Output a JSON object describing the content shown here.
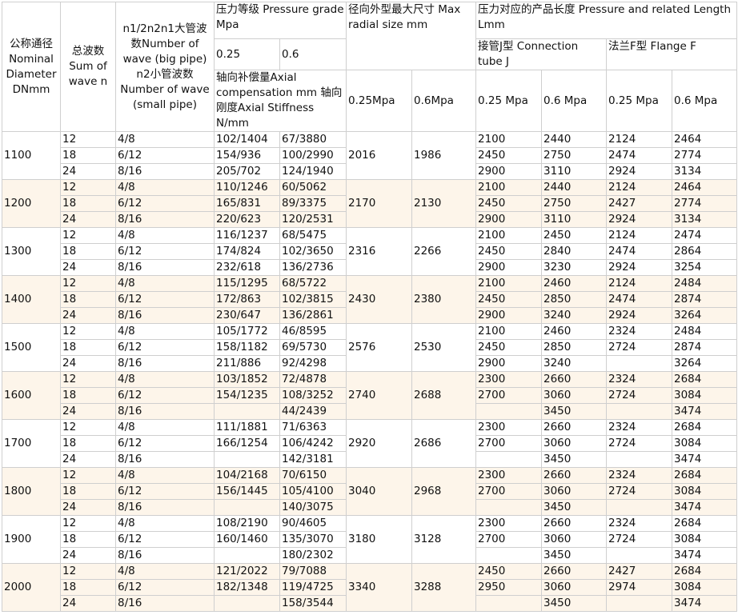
{
  "header": {
    "dn": "公称通径Nominal Diameter DNmm",
    "n": "总波数Sum of wave n",
    "waves": "n1/2n2n1大管波数Number of wave (big pipe) n2小管波数Number of wave (small pipe)",
    "pressure_title": "压力等级 Pressure grade Mpa",
    "p025": "0.25",
    "p06": "0.6",
    "axial": "轴向补偿量Axial compensation mm 轴向刚度Axial Stiffness N/mm",
    "radial": "径向外型最大尺寸 Max radial size mm",
    "radial_025": "0.25Mpa",
    "radial_06": "0.6Mpa",
    "length": "压力对应的产品长度 Pressure and related Length Lmm",
    "tube": "接管J型 Connection tube J",
    "flange": "法兰F型 Flange F",
    "tube_025": "0.25 Mpa",
    "tube_06": "0.6 Mpa",
    "flange_025": "0.25 Mpa",
    "flange_06": "0.6 Mpa"
  },
  "groups": [
    {
      "dn": "1100",
      "r025": "2016",
      "r06": "1986",
      "rows": [
        {
          "n": "12",
          "w": "4/8",
          "a025": "102/1404",
          "a06": "67/3880",
          "j025": "2100",
          "j06": "2440",
          "f025": "2124",
          "f06": "2464"
        },
        {
          "n": "18",
          "w": "6/12",
          "a025": "154/936",
          "a06": "100/2990",
          "j025": "2450",
          "j06": "2750",
          "f025": "2474",
          "f06": "2774"
        },
        {
          "n": "24",
          "w": "8/16",
          "a025": "205/702",
          "a06": "124/1940",
          "j025": "2900",
          "j06": "3110",
          "f025": "2924",
          "f06": "3134"
        }
      ]
    },
    {
      "dn": "1200",
      "r025": "2170",
      "r06": "2130",
      "rows": [
        {
          "n": "12",
          "w": "4/8",
          "a025": "110/1246",
          "a06": "60/5062",
          "j025": "2100",
          "j06": "2440",
          "f025": "2124",
          "f06": "2464"
        },
        {
          "n": "18",
          "w": "6/12",
          "a025": "165/831",
          "a06": "89/3375",
          "j025": "2450",
          "j06": "2750",
          "f025": "2427",
          "f06": "2774"
        },
        {
          "n": "24",
          "w": "8/16",
          "a025": "220/623",
          "a06": "120/2531",
          "j025": "2900",
          "j06": "3110",
          "f025": "2924",
          "f06": "3134"
        }
      ]
    },
    {
      "dn": "1300",
      "r025": "2316",
      "r06": "2266",
      "rows": [
        {
          "n": "12",
          "w": "4/8",
          "a025": "116/1237",
          "a06": "68/5475",
          "j025": "2100",
          "j06": "2450",
          "f025": "2124",
          "f06": "2474"
        },
        {
          "n": "18",
          "w": "6/12",
          "a025": "174/824",
          "a06": "102/3650",
          "j025": "2450",
          "j06": "2840",
          "f025": "2474",
          "f06": "2864"
        },
        {
          "n": "24",
          "w": "8/16",
          "a025": "232/618",
          "a06": "136/2736",
          "j025": "2900",
          "j06": "3230",
          "f025": "2924",
          "f06": "3254"
        }
      ]
    },
    {
      "dn": "1400",
      "r025": "2430",
      "r06": "2380",
      "rows": [
        {
          "n": "12",
          "w": "4/8",
          "a025": "115/1295",
          "a06": "68/5722",
          "j025": "2100",
          "j06": "2460",
          "f025": "2124",
          "f06": "2484"
        },
        {
          "n": "18",
          "w": "6/12",
          "a025": "172/863",
          "a06": "102/3815",
          "j025": "2450",
          "j06": "2850",
          "f025": "2474",
          "f06": "2874"
        },
        {
          "n": "24",
          "w": "8/16",
          "a025": "230/647",
          "a06": "136/2861",
          "j025": "2900",
          "j06": "3240",
          "f025": "2924",
          "f06": "3264"
        }
      ]
    },
    {
      "dn": "1500",
      "r025": "2576",
      "r06": "2530",
      "rows": [
        {
          "n": "12",
          "w": "4/8",
          "a025": "105/1772",
          "a06": "46/8595",
          "j025": "2100",
          "j06": "2460",
          "f025": "2324",
          "f06": "2484"
        },
        {
          "n": "18",
          "w": "6/12",
          "a025": "158/1182",
          "a06": "69/5730",
          "j025": "2450",
          "j06": "2850",
          "f025": "2724",
          "f06": "2874"
        },
        {
          "n": "24",
          "w": "8/16",
          "a025": "211/886",
          "a06": "92/4298",
          "j025": "2900",
          "j06": "3240",
          "f025": "",
          "f06": "3264"
        }
      ]
    },
    {
      "dn": "1600",
      "r025": "2740",
      "r06": "2688",
      "rows": [
        {
          "n": "12",
          "w": "4/8",
          "a025": "103/1852",
          "a06": "72/4878",
          "j025": "2300",
          "j06": "2660",
          "f025": "2324",
          "f06": "2684"
        },
        {
          "n": "18",
          "w": "6/12",
          "a025": "154/1235",
          "a06": "108/3252",
          "j025": "2700",
          "j06": "3060",
          "f025": "2724",
          "f06": "3084"
        },
        {
          "n": "24",
          "w": "8/16",
          "a025": "",
          "a06": "44/2439",
          "j025": "",
          "j06": "3450",
          "f025": "",
          "f06": "3474"
        }
      ]
    },
    {
      "dn": "1700",
      "r025": "2920",
      "r06": "2686",
      "rows": [
        {
          "n": "12",
          "w": "4/8",
          "a025": "111/1881",
          "a06": "71/6363",
          "j025": "2300",
          "j06": "2660",
          "f025": "2324",
          "f06": "2684"
        },
        {
          "n": "18",
          "w": "6/12",
          "a025": "166/1254",
          "a06": "106/4242",
          "j025": "2700",
          "j06": "3060",
          "f025": "2724",
          "f06": "3084"
        },
        {
          "n": "24",
          "w": "8/16",
          "a025": "",
          "a06": "142/3181",
          "j025": "",
          "j06": "3450",
          "f025": "",
          "f06": "3474"
        }
      ]
    },
    {
      "dn": "1800",
      "r025": "3040",
      "r06": "2968",
      "rows": [
        {
          "n": "12",
          "w": "4/8",
          "a025": "104/2168",
          "a06": "70/6150",
          "j025": "2300",
          "j06": "2660",
          "f025": "2324",
          "f06": "2684"
        },
        {
          "n": "18",
          "w": "6/12",
          "a025": "156/1445",
          "a06": "105/4100",
          "j025": "2700",
          "j06": "3060",
          "f025": "2724",
          "f06": "3084"
        },
        {
          "n": "24",
          "w": "8/16",
          "a025": "",
          "a06": "140/3075",
          "j025": "",
          "j06": "3450",
          "f025": "",
          "f06": "3474"
        }
      ]
    },
    {
      "dn": "1900",
      "r025": "3180",
      "r06": "3128",
      "rows": [
        {
          "n": "12",
          "w": "4/8",
          "a025": "108/2190",
          "a06": "90/4605",
          "j025": "2300",
          "j06": "2660",
          "f025": "2324",
          "f06": "2684"
        },
        {
          "n": "18",
          "w": "6/12",
          "a025": "160/1460",
          "a06": "135/3070",
          "j025": "2700",
          "j06": "3060",
          "f025": "2724",
          "f06": "3084"
        },
        {
          "n": "24",
          "w": "8/16",
          "a025": "",
          "a06": "180/2302",
          "j025": "",
          "j06": "3450",
          "f025": "",
          "f06": "3474"
        }
      ]
    },
    {
      "dn": "2000",
      "r025": "3340",
      "r06": "3288",
      "rows": [
        {
          "n": "12",
          "w": "4/8",
          "a025": "121/2022",
          "a06": "79/7088",
          "j025": "2450",
          "j06": "2660",
          "f025": "2427",
          "f06": "2684"
        },
        {
          "n": "18",
          "w": "6/12",
          "a025": "182/1348",
          "a06": "119/4725",
          "j025": "2950",
          "j06": "3060",
          "f025": "2974",
          "f06": "3084"
        },
        {
          "n": "24",
          "w": "8/16",
          "a025": "",
          "a06": "158/3544",
          "j025": "",
          "j06": "3450",
          "f025": "",
          "f06": "3474"
        }
      ]
    }
  ]
}
